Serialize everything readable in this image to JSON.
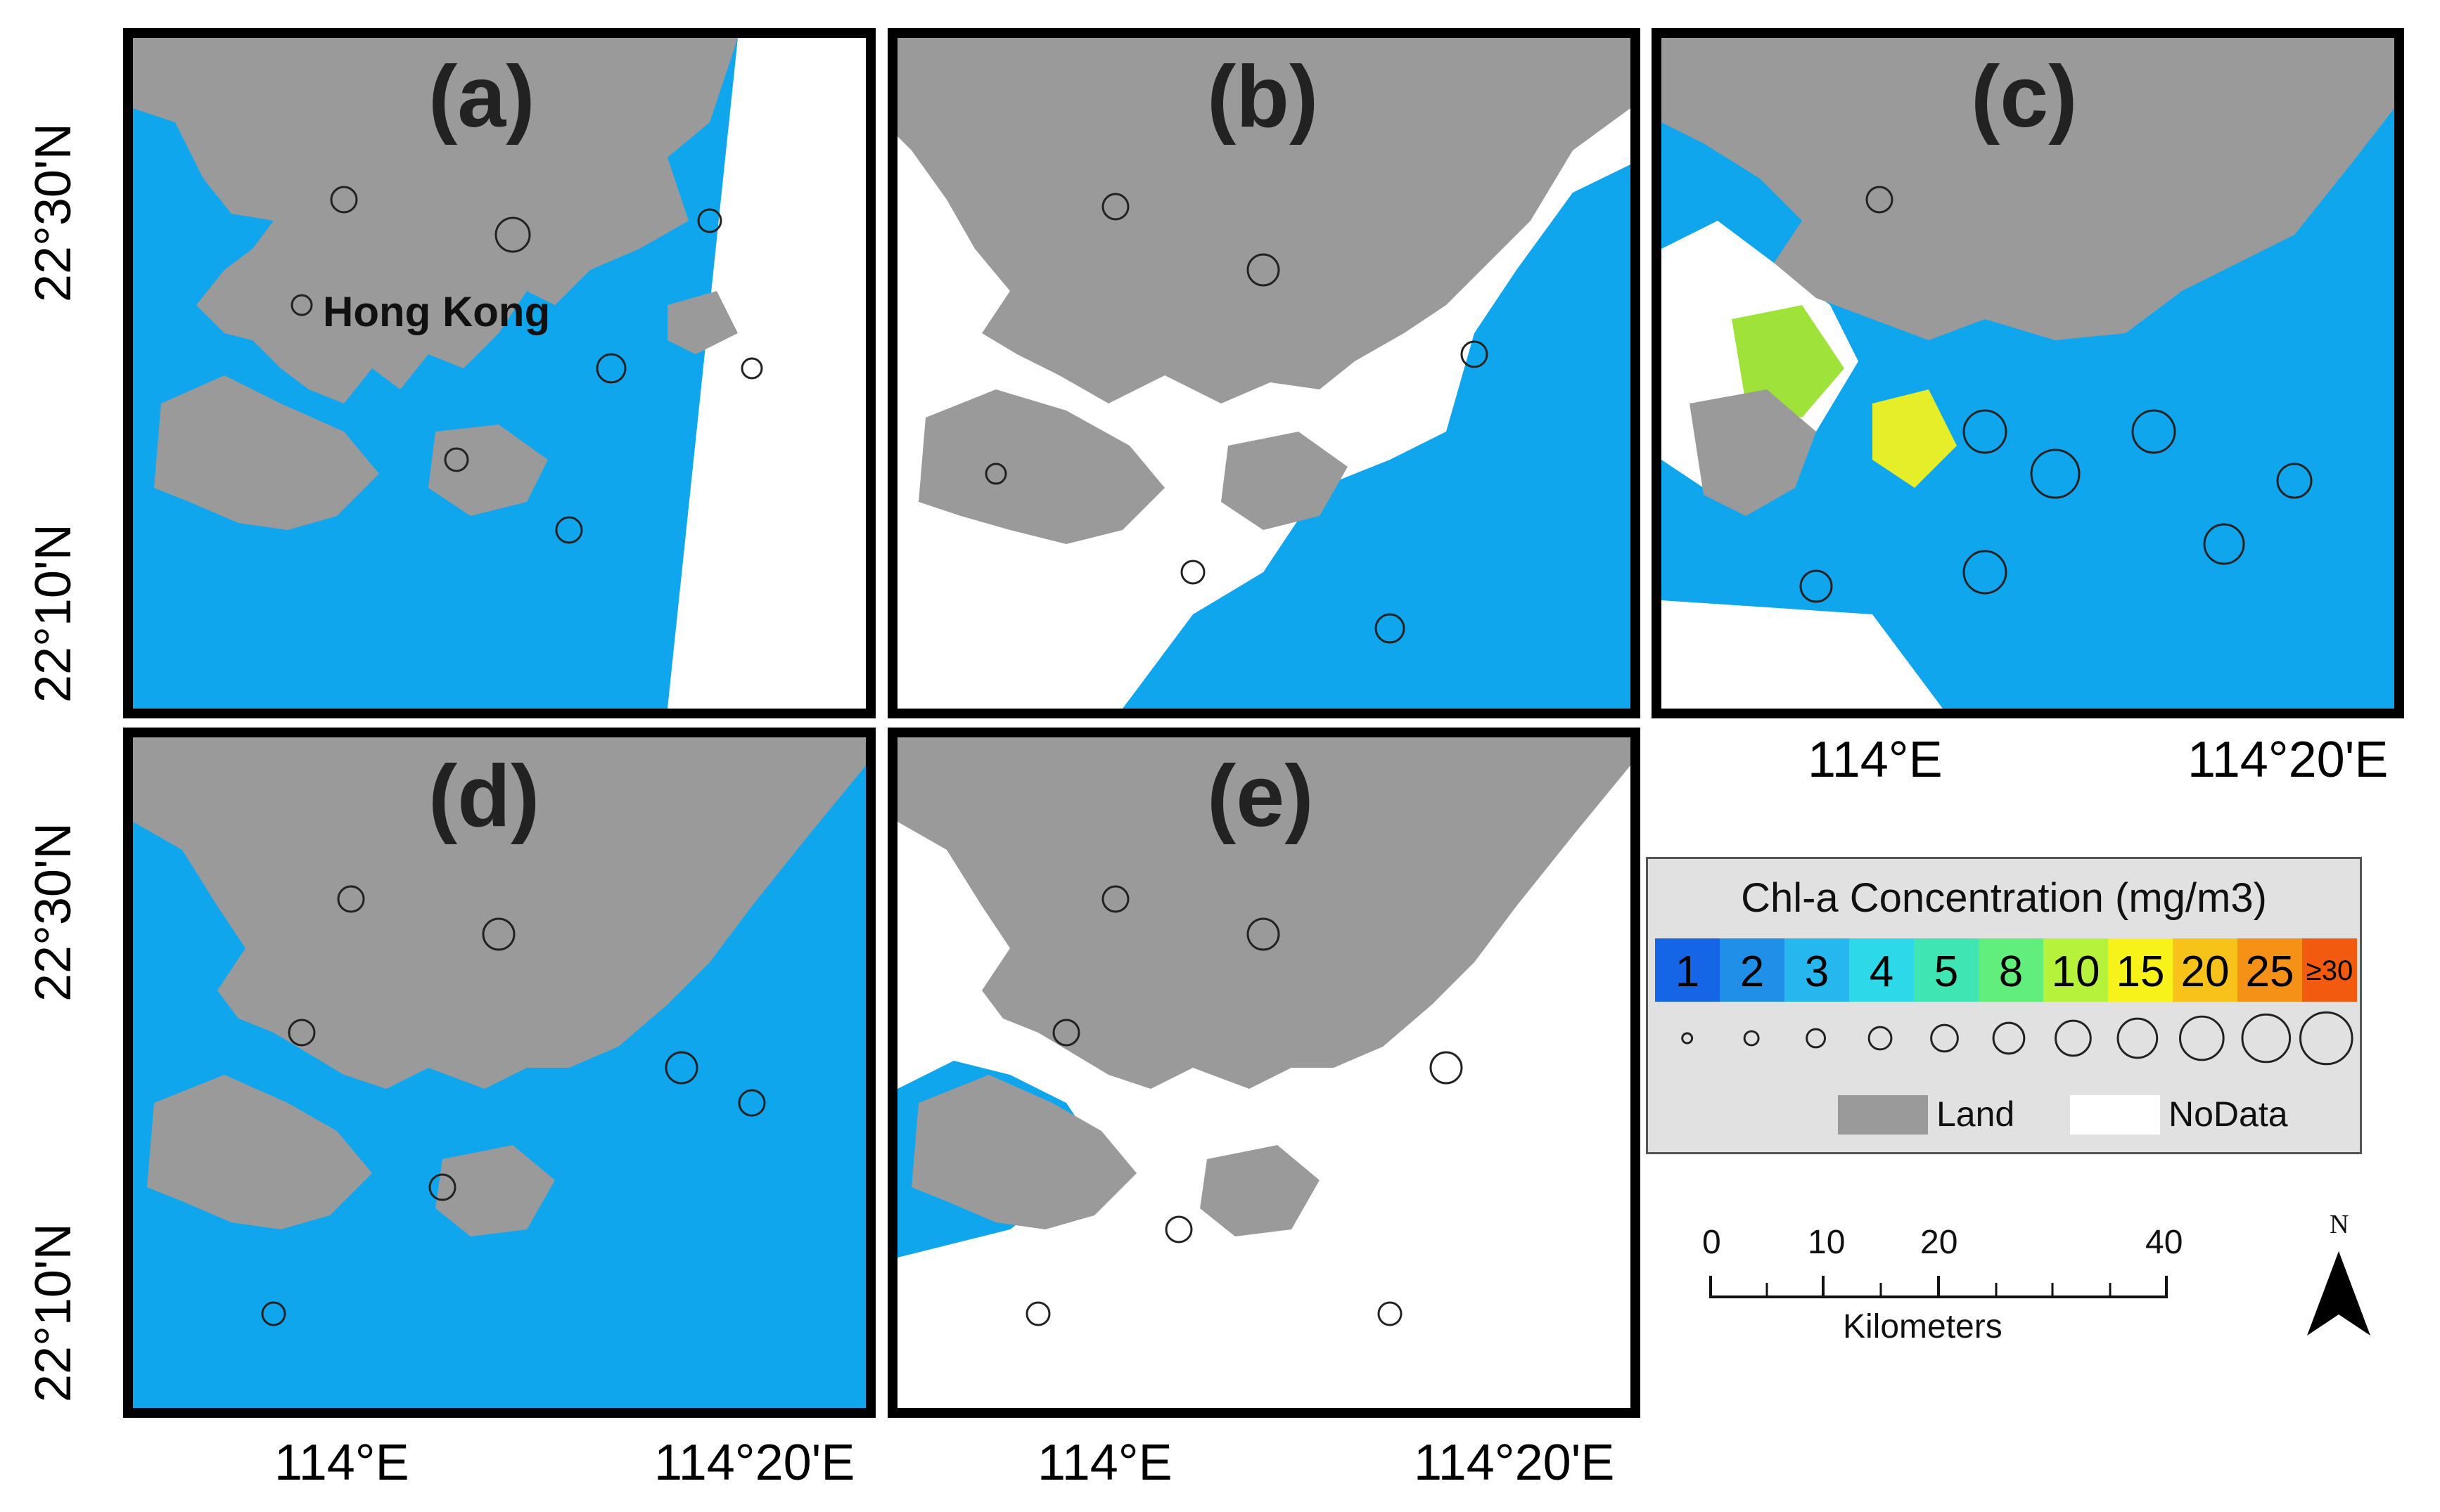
{
  "panels": [
    {
      "label": "(a)",
      "place_label": "Hong Kong"
    },
    {
      "label": "(b)"
    },
    {
      "label": "(c)"
    },
    {
      "label": "(d)"
    },
    {
      "label": "(e)"
    }
  ],
  "axes": {
    "lat_top": "22°30'N",
    "lat_bottom": "22°10'N",
    "lon_left": "114°E",
    "lon_right": "114°20'E"
  },
  "legend": {
    "title": "Chl-a Concentration (mg/m3)",
    "classes": [
      {
        "value": "1",
        "color": "#1565e6"
      },
      {
        "value": "2",
        "color": "#1f8fe8"
      },
      {
        "value": "3",
        "color": "#26b7ee"
      },
      {
        "value": "4",
        "color": "#2dd8e8"
      },
      {
        "value": "5",
        "color": "#3fe6b4"
      },
      {
        "value": "8",
        "color": "#62ee7c"
      },
      {
        "value": "10",
        "color": "#b6f23c"
      },
      {
        "value": "15",
        "color": "#f6f21a"
      },
      {
        "value": "20",
        "color": "#f7c21a"
      },
      {
        "value": "25",
        "color": "#f49116"
      },
      {
        "value": "≥30",
        "color": "#f25a10"
      }
    ],
    "land_label": "Land",
    "nodata_label": "NoData",
    "land_color": "#9a9a9a",
    "nodata_color": "#ffffff"
  },
  "scale_bar": {
    "ticks": [
      "0",
      "10",
      "20",
      "40"
    ],
    "unit": "Kilometers"
  },
  "north_arrow": {
    "label": "N"
  },
  "colors": {
    "water": "#0fa6ee",
    "land": "#9a9a9a",
    "nodata": "#ffffff",
    "frame": "#000000"
  }
}
